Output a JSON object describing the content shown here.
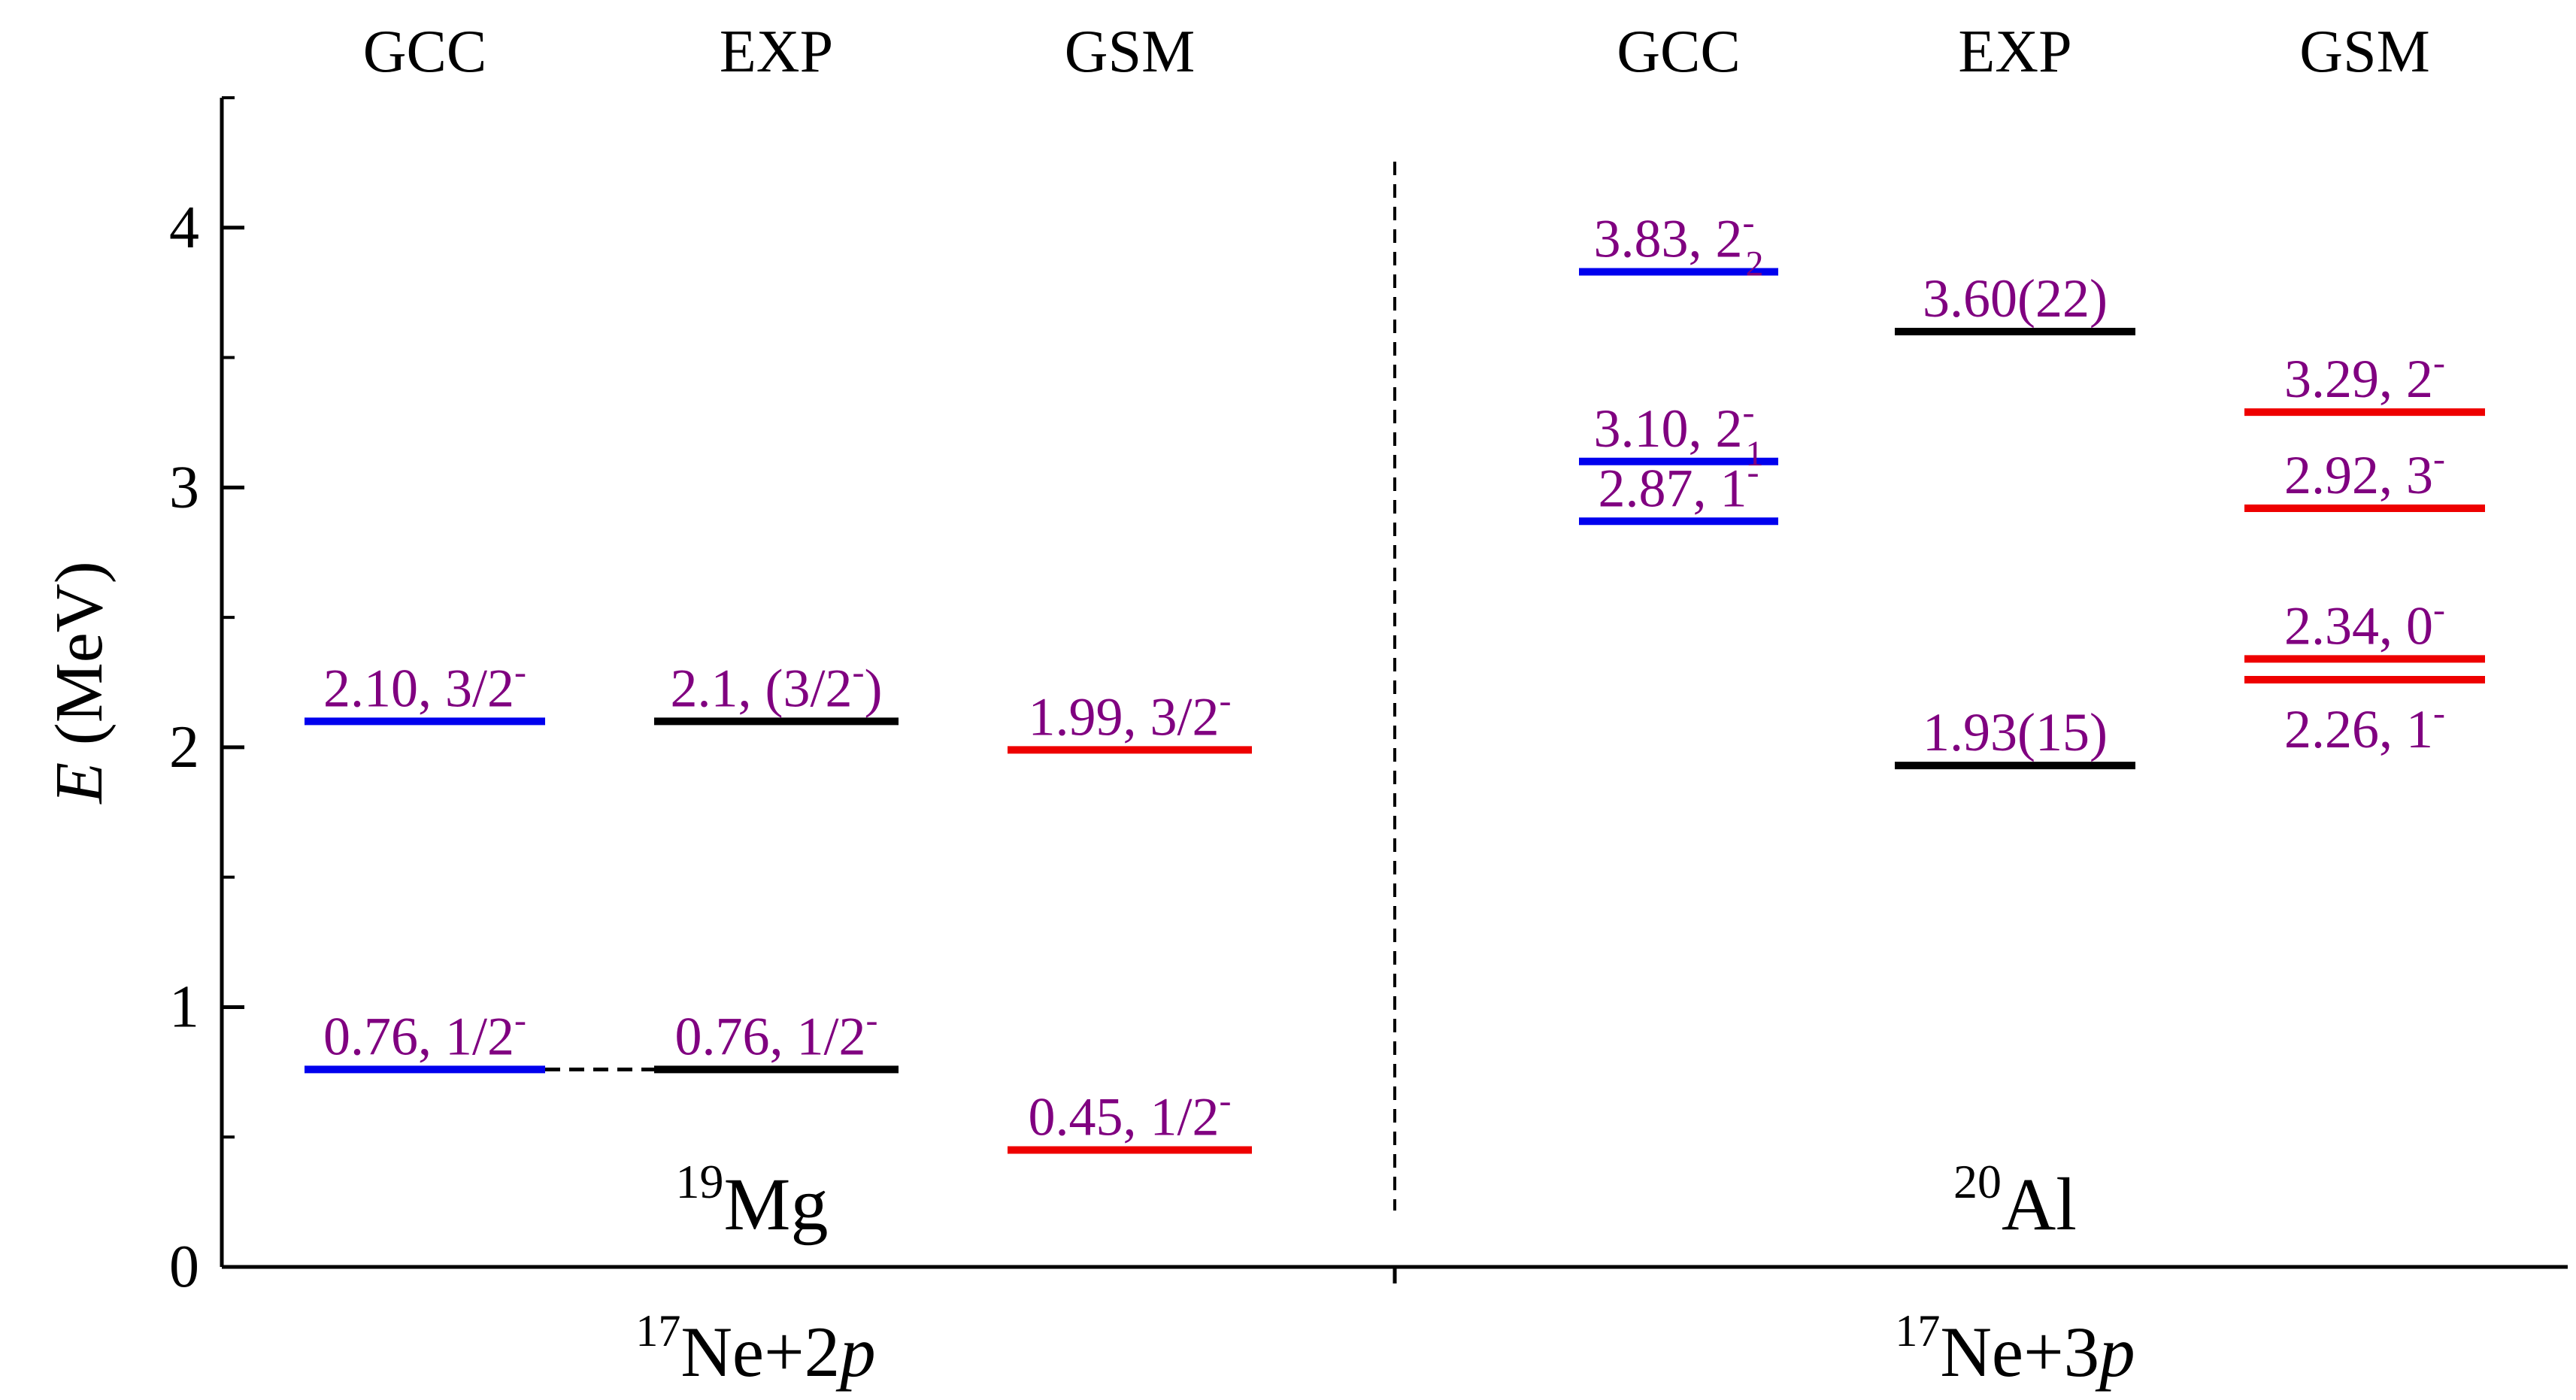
{
  "chart_data": {
    "type": "level-scheme",
    "y_axis": {
      "label_italic": "E",
      "label_rest": " (MeV)",
      "ticks": [
        "0",
        "1",
        "2",
        "3",
        "4"
      ],
      "ylim": [
        0,
        4.5
      ]
    },
    "colors": {
      "GCC": "#0000ee",
      "EXP": "#000000",
      "GSM": "#ee0000",
      "label": "#800080"
    },
    "panels": [
      {
        "nucleus": {
          "mass": "19",
          "element": "Mg"
        },
        "channel": {
          "mass": "17",
          "text": "Ne+2",
          "italic": "p"
        },
        "columns": [
          {
            "name": "GCC",
            "levels": [
              {
                "energy": 2.1,
                "label": "2.10, 3/2",
                "sup": "-",
                "sub": "",
                "after": "",
                "label_pos": "above"
              },
              {
                "energy": 0.76,
                "label": "0.76, 1/2",
                "sup": "-",
                "sub": "",
                "after": "",
                "label_pos": "above"
              }
            ]
          },
          {
            "name": "EXP",
            "levels": [
              {
                "energy": 2.1,
                "label": "2.1, (3/2",
                "sup": "-",
                "sub": "",
                "after": ")",
                "label_pos": "above"
              },
              {
                "energy": 0.76,
                "label": "0.76, 1/2",
                "sup": "-",
                "sub": "",
                "after": "",
                "label_pos": "above"
              }
            ]
          },
          {
            "name": "GSM",
            "levels": [
              {
                "energy": 1.99,
                "label": "1.99, 3/2",
                "sup": "-",
                "sub": "",
                "after": "",
                "label_pos": "above"
              },
              {
                "energy": 0.45,
                "label": "0.45, 1/2",
                "sup": "-",
                "sub": "",
                "after": "",
                "label_pos": "above"
              }
            ]
          }
        ]
      },
      {
        "nucleus": {
          "mass": "20",
          "element": "Al"
        },
        "channel": {
          "mass": "17",
          "text": "Ne+3",
          "italic": "p"
        },
        "columns": [
          {
            "name": "GCC",
            "levels": [
              {
                "energy": 3.83,
                "label": "3.83, 2",
                "sup": "-",
                "sub": "2",
                "after": "",
                "label_pos": "above"
              },
              {
                "energy": 3.1,
                "label": "3.10, 2",
                "sup": "-",
                "sub": "1",
                "after": "",
                "label_pos": "above"
              },
              {
                "energy": 2.87,
                "label": "2.87, 1",
                "sup": "-",
                "sub": "",
                "after": "",
                "label_pos": "above"
              }
            ]
          },
          {
            "name": "EXP",
            "levels": [
              {
                "energy": 3.6,
                "label": "3.60(22)",
                "sup": "",
                "sub": "",
                "after": "",
                "label_pos": "above"
              },
              {
                "energy": 1.93,
                "label": "1.93(15)",
                "sup": "",
                "sub": "",
                "after": "",
                "label_pos": "above"
              }
            ]
          },
          {
            "name": "GSM",
            "levels": [
              {
                "energy": 3.29,
                "label": "3.29, 2",
                "sup": "-",
                "sub": "",
                "after": "",
                "label_pos": "above"
              },
              {
                "energy": 2.92,
                "label": "2.92, 3",
                "sup": "-",
                "sub": "",
                "after": "",
                "label_pos": "above"
              },
              {
                "energy": 2.34,
                "label": "2.34, 0",
                "sup": "-",
                "sub": "",
                "after": "",
                "label_pos": "above"
              },
              {
                "energy": 2.26,
                "label": "2.26, 1",
                "sup": "-",
                "sub": "",
                "after": "",
                "label_pos": "below"
              }
            ]
          }
        ]
      }
    ]
  }
}
